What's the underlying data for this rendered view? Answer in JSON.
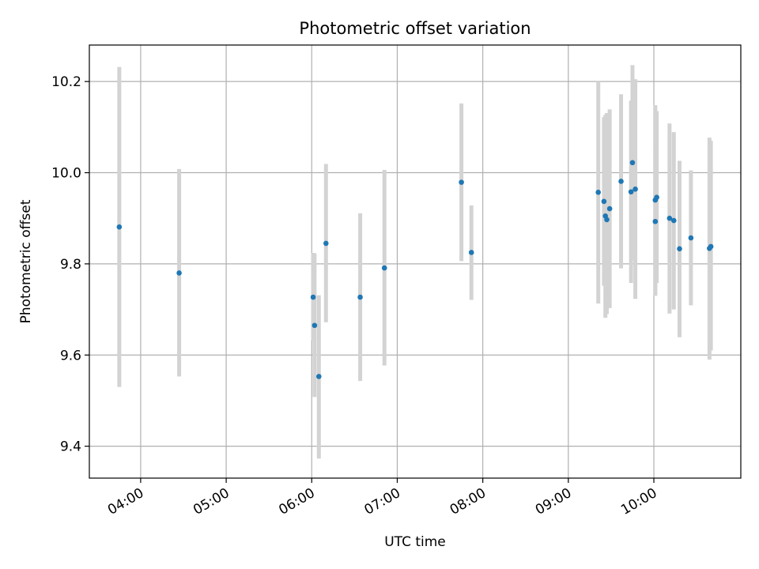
{
  "chart_data": {
    "type": "scatter",
    "title": "Photometric offset variation",
    "xlabel": "UTC time",
    "ylabel": "Photometric offset",
    "x_axis_type": "time",
    "xlim": [
      "03:24",
      "11:01"
    ],
    "ylim": [
      9.33,
      10.28
    ],
    "x_ticks": [
      "04:00",
      "05:00",
      "06:00",
      "07:00",
      "08:00",
      "09:00",
      "10:00"
    ],
    "y_ticks": [
      9.4,
      9.6,
      9.8,
      10.0,
      10.2
    ],
    "x_tick_labels": [
      "04:00",
      "05:00",
      "06:00",
      "07:00",
      "08:00",
      "09:00",
      "10:00"
    ],
    "y_tick_labels": [
      "9.4",
      "9.6",
      "9.8",
      "10.0",
      "10.2"
    ],
    "grid": true,
    "colors": {
      "point": "#1f77b4",
      "errorbar": "#d3d3d3"
    },
    "points": [
      {
        "x": "03:45",
        "y": 9.881,
        "ylow": 9.53,
        "yhigh": 10.232
      },
      {
        "x": "04:27",
        "y": 9.78,
        "ylow": 9.553,
        "yhigh": 10.008
      },
      {
        "x": "06:01",
        "y": 9.727,
        "ylow": 9.632,
        "yhigh": 9.824
      },
      {
        "x": "06:02",
        "y": 9.665,
        "ylow": 9.508,
        "yhigh": 9.823
      },
      {
        "x": "06:05",
        "y": 9.553,
        "ylow": 9.373,
        "yhigh": 9.731
      },
      {
        "x": "06:10",
        "y": 9.845,
        "ylow": 9.672,
        "yhigh": 10.019
      },
      {
        "x": "06:34",
        "y": 9.727,
        "ylow": 9.543,
        "yhigh": 9.911
      },
      {
        "x": "06:51",
        "y": 9.791,
        "ylow": 9.577,
        "yhigh": 10.006
      },
      {
        "x": "07:45",
        "y": 9.979,
        "ylow": 9.806,
        "yhigh": 10.152
      },
      {
        "x": "07:52",
        "y": 9.825,
        "ylow": 9.721,
        "yhigh": 9.928
      },
      {
        "x": "09:21",
        "y": 9.957,
        "ylow": 9.713,
        "yhigh": 10.2
      },
      {
        "x": "09:25",
        "y": 9.937,
        "ylow": 9.752,
        "yhigh": 10.122
      },
      {
        "x": "09:26",
        "y": 9.905,
        "ylow": 9.682,
        "yhigh": 10.127
      },
      {
        "x": "09:27",
        "y": 9.897,
        "ylow": 9.69,
        "yhigh": 10.131
      },
      {
        "x": "09:29",
        "y": 9.921,
        "ylow": 9.703,
        "yhigh": 10.139
      },
      {
        "x": "09:37",
        "y": 9.981,
        "ylow": 9.79,
        "yhigh": 10.172
      },
      {
        "x": "09:44",
        "y": 9.958,
        "ylow": 9.758,
        "yhigh": 10.158
      },
      {
        "x": "09:45",
        "y": 10.022,
        "ylow": 9.808,
        "yhigh": 10.236
      },
      {
        "x": "09:47",
        "y": 9.964,
        "ylow": 9.723,
        "yhigh": 10.205
      },
      {
        "x": "10:01",
        "y": 9.94,
        "ylow": 9.73,
        "yhigh": 10.148
      },
      {
        "x": "10:01",
        "y": 9.893,
        "ylow": 9.73,
        "yhigh": 10.055
      },
      {
        "x": "10:02",
        "y": 9.946,
        "ylow": 9.758,
        "yhigh": 10.135
      },
      {
        "x": "10:11",
        "y": 9.9,
        "ylow": 9.691,
        "yhigh": 10.108
      },
      {
        "x": "10:14",
        "y": 9.895,
        "ylow": 9.7,
        "yhigh": 10.089
      },
      {
        "x": "10:18",
        "y": 9.833,
        "ylow": 9.639,
        "yhigh": 10.026
      },
      {
        "x": "10:26",
        "y": 9.857,
        "ylow": 9.709,
        "yhigh": 10.005
      },
      {
        "x": "10:39",
        "y": 9.834,
        "ylow": 9.59,
        "yhigh": 10.077
      },
      {
        "x": "10:40",
        "y": 9.838,
        "ylow": 9.61,
        "yhigh": 10.07
      }
    ]
  }
}
